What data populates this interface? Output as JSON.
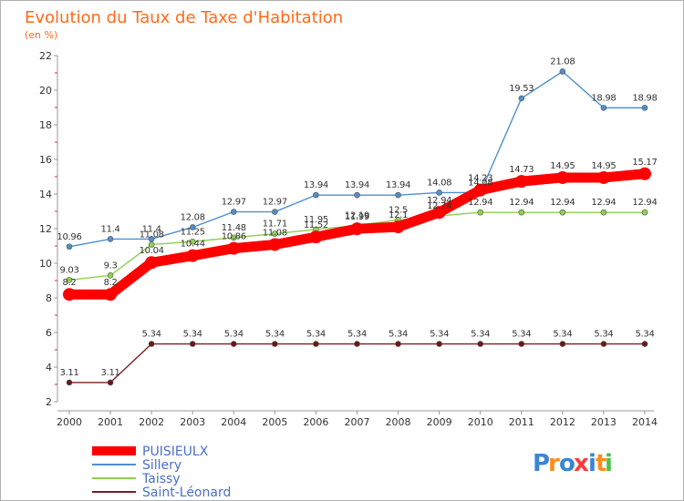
{
  "header": {
    "title": "Evolution du Taux de Taxe d'Habitation",
    "subtitle": "(en %)"
  },
  "logo": {
    "text": "Proxiti",
    "colors": [
      "#3a86d6",
      "#ff8c1a",
      "#3a86d6",
      "#ff3a3a",
      "#3a86d6",
      "#ff8c1a",
      "#4cc24c"
    ]
  },
  "chart_data": {
    "type": "line",
    "title": "Evolution du Taux de Taxe d'Habitation",
    "subtitle": "(en %)",
    "xlabel": "",
    "ylabel": "",
    "x": [
      "2000",
      "2001",
      "2002",
      "2003",
      "2004",
      "2005",
      "2006",
      "2007",
      "2008",
      "2009",
      "2010",
      "2011",
      "2012",
      "2013",
      "2014"
    ],
    "ylim": [
      2,
      22
    ],
    "yticks": [
      2,
      4,
      6,
      8,
      10,
      12,
      14,
      16,
      18,
      20,
      22
    ],
    "grid": false,
    "legend_position": "bottom-left",
    "series": [
      {
        "name": "PUISIEULX",
        "color": "#ff0000",
        "values": [
          8.2,
          8.2,
          10.04,
          10.44,
          10.86,
          11.08,
          11.52,
          11.99,
          12.1,
          12.94,
          14.23,
          14.73,
          14.95,
          14.95,
          15.17
        ],
        "labels": [
          "8.2",
          "8.2",
          "10.04",
          "10.44",
          "10.86",
          "11.08",
          "11.52",
          "11.99",
          "12.1",
          "12.94",
          "14.23",
          "14.73",
          "14.95",
          "14.95",
          "15.17"
        ]
      },
      {
        "name": "Sillery",
        "color": "#4f8fce",
        "values": [
          10.96,
          11.4,
          11.4,
          12.08,
          12.97,
          12.97,
          13.94,
          13.94,
          13.94,
          14.08,
          14.08,
          19.53,
          21.08,
          18.98,
          18.98
        ],
        "labels": [
          "10.96",
          "11.4",
          "11.4",
          "12.08",
          "12.97",
          "12.97",
          "13.94",
          "13.94",
          "13.94",
          "14.08",
          "14.08",
          "19.53",
          "21.08",
          "18.98",
          "18.98"
        ]
      },
      {
        "name": "Taissy",
        "color": "#8fd14f",
        "values": [
          9.03,
          9.3,
          11.08,
          11.25,
          11.48,
          11.71,
          11.95,
          12.19,
          12.5,
          12.74,
          12.94,
          12.94,
          12.94,
          12.94,
          12.94
        ],
        "labels": [
          "9.03",
          "9.3",
          "11.08",
          "11.25",
          "11.48",
          "11.71",
          "11.95",
          "12.19",
          "12.5",
          "12.74",
          "12.94",
          "12.94",
          "12.94",
          "12.94",
          "12.94"
        ]
      },
      {
        "name": "Saint-Léonard",
        "color": "#7a2020",
        "values": [
          3.11,
          3.11,
          5.34,
          5.34,
          5.34,
          5.34,
          5.34,
          5.34,
          5.34,
          5.34,
          5.34,
          5.34,
          5.34,
          5.34,
          5.34
        ],
        "labels": [
          "3.11",
          "3.11",
          "5.34",
          "5.34",
          "5.34",
          "5.34",
          "5.34",
          "5.34",
          "5.34",
          "5.34",
          "5.34",
          "5.34",
          "5.34",
          "5.34",
          "5.34"
        ]
      }
    ]
  }
}
